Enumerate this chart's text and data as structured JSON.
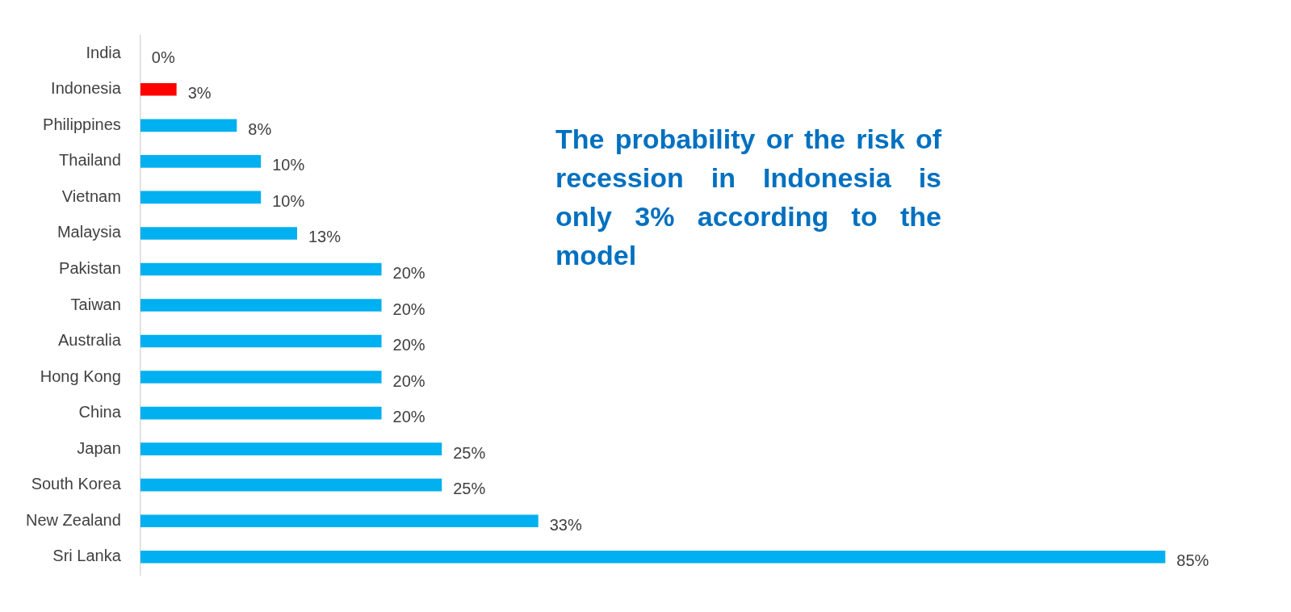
{
  "chart_data": {
    "type": "bar",
    "orientation": "horizontal",
    "categories": [
      "India",
      "Indonesia",
      "Philippines",
      "Thailand",
      "Vietnam",
      "Malaysia",
      "Pakistan",
      "Taiwan",
      "Australia",
      "Hong Kong",
      "China",
      "Japan",
      "South Korea",
      "New Zealand",
      "Sri Lanka"
    ],
    "values": [
      0,
      3,
      8,
      10,
      10,
      13,
      20,
      20,
      20,
      20,
      20,
      25,
      25,
      33,
      85
    ],
    "colors": [
      "#00b0f0",
      "#ff0000",
      "#00b0f0",
      "#00b0f0",
      "#00b0f0",
      "#00b0f0",
      "#00b0f0",
      "#00b0f0",
      "#00b0f0",
      "#00b0f0",
      "#00b0f0",
      "#00b0f0",
      "#00b0f0",
      "#00b0f0",
      "#00b0f0"
    ],
    "value_labels": [
      "0%",
      "3%",
      "8%",
      "10%",
      "10%",
      "13%",
      "20%",
      "20%",
      "20%",
      "20%",
      "20%",
      "25%",
      "25%",
      "33%",
      "85%"
    ],
    "annotations": [
      "The probability or the risk of recession in Indonesia is only 3% according to the model"
    ],
    "legend": false
  }
}
